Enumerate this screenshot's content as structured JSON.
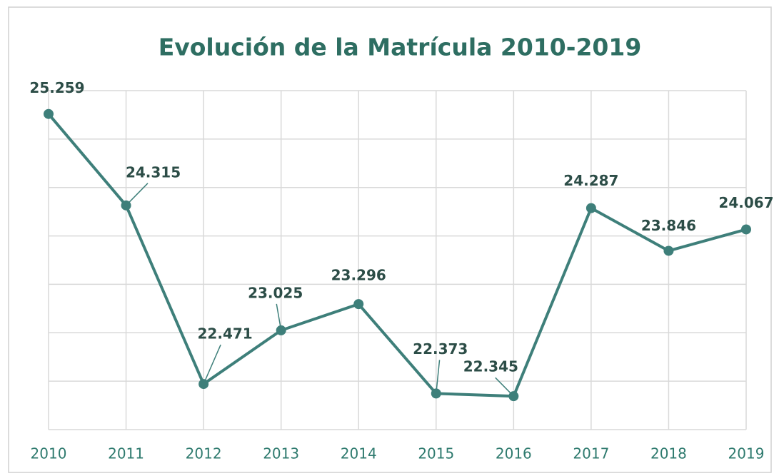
{
  "chart_data": {
    "type": "line",
    "title": "Evolución de la Matrícula 2010-2019",
    "categories": [
      "2010",
      "2011",
      "2012",
      "2013",
      "2014",
      "2015",
      "2016",
      "2017",
      "2018",
      "2019"
    ],
    "series": [
      {
        "name": "Matrícula",
        "color": "#3e7f7a",
        "values": [
          25259,
          24315,
          22471,
          23025,
          23296,
          22373,
          22345,
          24287,
          23846,
          24067
        ],
        "value_labels": [
          "25.259",
          "24.315",
          "22.471",
          "23.025",
          "23.296",
          "22.373",
          "22.345",
          "24.287",
          "23.846",
          "24.067"
        ]
      }
    ],
    "ylim": [
      22000,
      25500
    ],
    "yticks": [
      22000,
      22500,
      23000,
      23500,
      24000,
      24500,
      25000,
      25500
    ],
    "grid": true
  }
}
